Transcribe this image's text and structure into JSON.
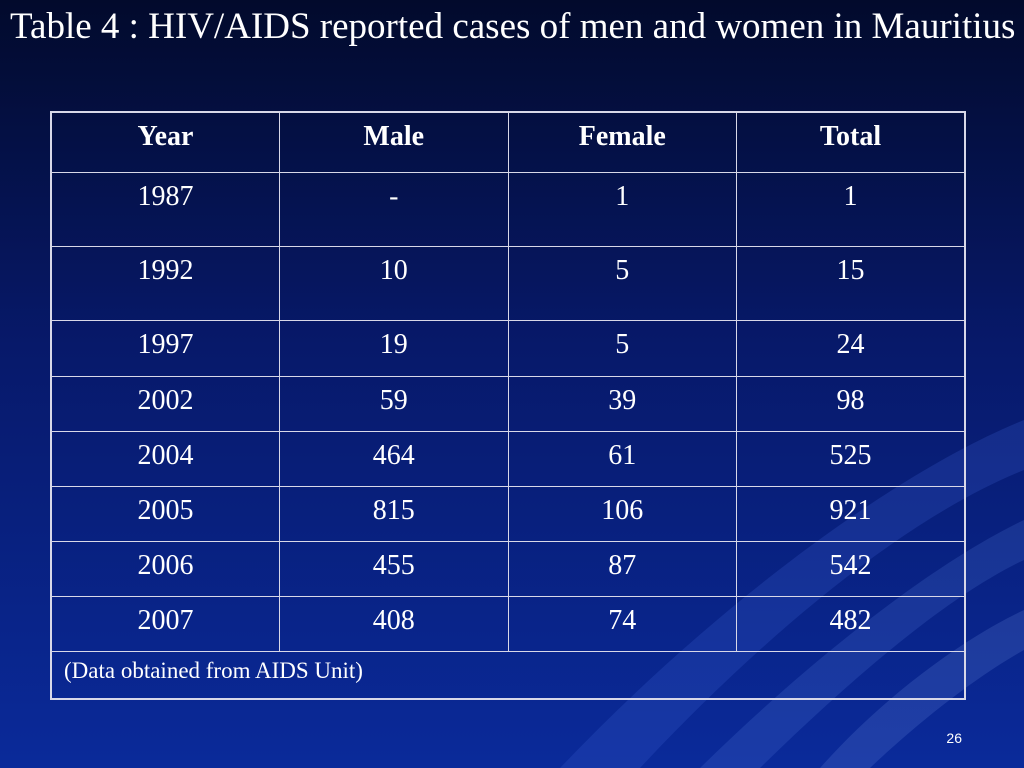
{
  "slide": {
    "title": "Table 4 : HIV/AIDS reported cases of men and women in Mauritius",
    "page_number": "26"
  },
  "table": {
    "headers": [
      "Year",
      "Male",
      "Female",
      "Total"
    ],
    "rows": [
      [
        "1987",
        "-",
        "1",
        "1"
      ],
      [
        "1992",
        "10",
        "5",
        "15"
      ],
      [
        "1997",
        "19",
        "5",
        "24"
      ],
      [
        "2002",
        "59",
        "39",
        "98"
      ],
      [
        "2004",
        "464",
        "61",
        "525"
      ],
      [
        "2005",
        "815",
        "106",
        "921"
      ],
      [
        "2006",
        "455",
        "87",
        "542"
      ],
      [
        "2007",
        "408",
        "74",
        "482"
      ]
    ],
    "note": "(Data obtained from AIDS Unit)"
  },
  "colors": {
    "background_top": "#020a2c",
    "background_bottom": "#0a2a9a",
    "text": "#ffffff",
    "table_border": "#d8d8e8"
  }
}
